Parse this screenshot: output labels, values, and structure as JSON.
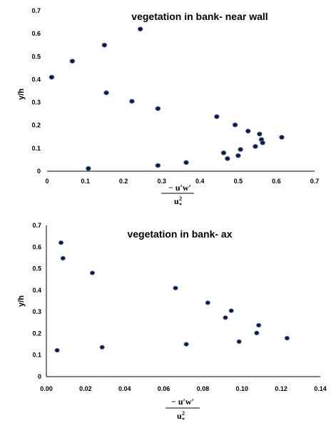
{
  "chart_data": [
    {
      "type": "scatter",
      "title": "vegetation in bank- near wall",
      "ylabel": "y/h",
      "xlabel": {
        "numerator": "− u′w′",
        "denominator_base": "u",
        "denominator_sup": "2",
        "denominator_sub": "*"
      },
      "xlim": [
        0,
        0.7
      ],
      "ylim": [
        0,
        0.7
      ],
      "xticks": [
        "0",
        "0.1",
        "0.2",
        "0.3",
        "0.4",
        "0.5",
        "0.6",
        "0.7"
      ],
      "yticks": [
        "0",
        "0.1",
        "0.2",
        "0.3",
        "0.4",
        "0.5",
        "0.6",
        "0.7"
      ],
      "grid": false,
      "points": [
        {
          "x": 0.012,
          "y": 0.41
        },
        {
          "x": 0.066,
          "y": 0.48
        },
        {
          "x": 0.108,
          "y": 0.012
        },
        {
          "x": 0.15,
          "y": 0.55
        },
        {
          "x": 0.155,
          "y": 0.342
        },
        {
          "x": 0.222,
          "y": 0.305
        },
        {
          "x": 0.244,
          "y": 0.62
        },
        {
          "x": 0.29,
          "y": 0.273
        },
        {
          "x": 0.29,
          "y": 0.025
        },
        {
          "x": 0.364,
          "y": 0.038
        },
        {
          "x": 0.444,
          "y": 0.238
        },
        {
          "x": 0.462,
          "y": 0.08
        },
        {
          "x": 0.472,
          "y": 0.055
        },
        {
          "x": 0.492,
          "y": 0.202
        },
        {
          "x": 0.5,
          "y": 0.068
        },
        {
          "x": 0.506,
          "y": 0.095
        },
        {
          "x": 0.526,
          "y": 0.175
        },
        {
          "x": 0.545,
          "y": 0.108
        },
        {
          "x": 0.556,
          "y": 0.162
        },
        {
          "x": 0.561,
          "y": 0.138
        },
        {
          "x": 0.564,
          "y": 0.124
        },
        {
          "x": 0.614,
          "y": 0.148
        }
      ]
    },
    {
      "type": "scatter",
      "title": "vegetation in bank- ax",
      "ylabel": "y/h",
      "xlabel": {
        "numerator": "− u′w′",
        "denominator_base": "u",
        "denominator_sup": "2",
        "denominator_sub": "*"
      },
      "xlim": [
        0,
        0.14
      ],
      "ylim": [
        0,
        0.7
      ],
      "xticks": [
        "0.00",
        "0.02",
        "0.04",
        "0.06",
        "0.08",
        "0.10",
        "0.12",
        "0.14"
      ],
      "yticks": [
        "0",
        "0.1",
        "0.2",
        "0.3",
        "0.4",
        "0.5",
        "0.6",
        "0.7"
      ],
      "grid": false,
      "points": [
        {
          "x": 0.0055,
          "y": 0.122
        },
        {
          "x": 0.0075,
          "y": 0.62
        },
        {
          "x": 0.0085,
          "y": 0.548
        },
        {
          "x": 0.0235,
          "y": 0.48
        },
        {
          "x": 0.0285,
          "y": 0.136
        },
        {
          "x": 0.066,
          "y": 0.41
        },
        {
          "x": 0.0715,
          "y": 0.15
        },
        {
          "x": 0.0825,
          "y": 0.342
        },
        {
          "x": 0.0915,
          "y": 0.273
        },
        {
          "x": 0.0945,
          "y": 0.305
        },
        {
          "x": 0.0985,
          "y": 0.162
        },
        {
          "x": 0.1075,
          "y": 0.202
        },
        {
          "x": 0.1085,
          "y": 0.238
        },
        {
          "x": 0.123,
          "y": 0.178
        }
      ]
    }
  ]
}
